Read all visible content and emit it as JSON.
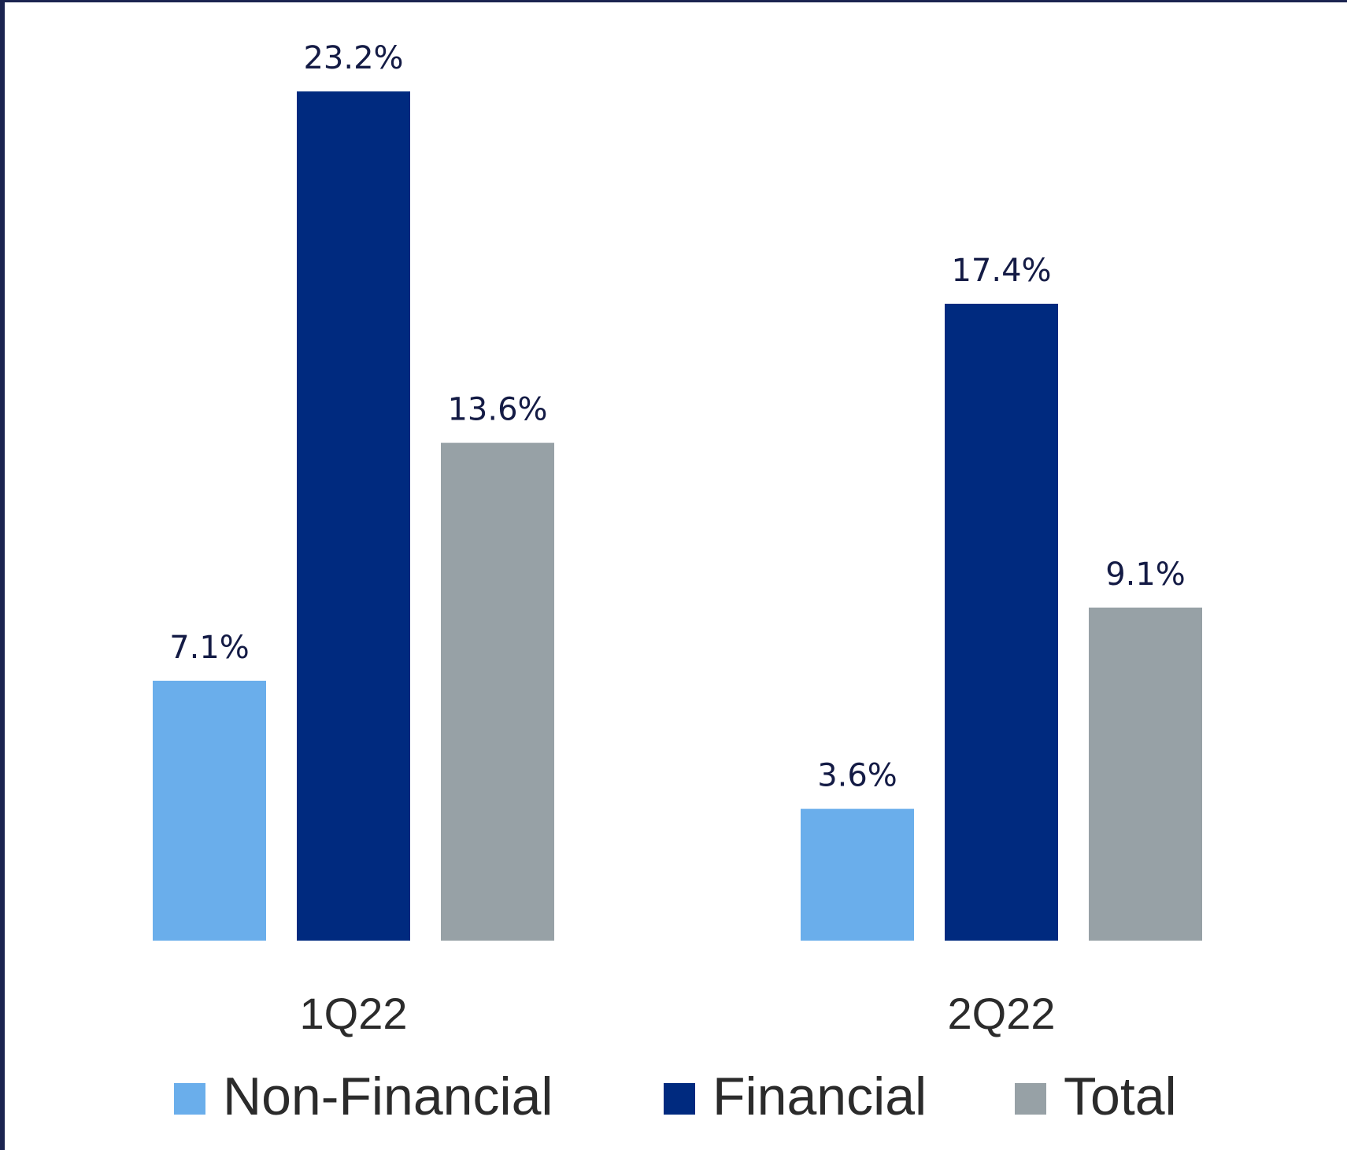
{
  "chart_data": {
    "type": "bar",
    "categories": [
      "1Q22",
      "2Q22"
    ],
    "series": [
      {
        "name": "Non-Financial",
        "color": "#6aaeeb",
        "values": [
          7.1,
          3.6
        ],
        "value_labels": [
          "7.1%",
          "3.6%"
        ]
      },
      {
        "name": "Financial",
        "color": "#002a7f",
        "values": [
          23.2,
          17.4
        ],
        "value_labels": [
          "23.2%",
          "17.4%"
        ]
      },
      {
        "name": "Total",
        "color": "#97a1a6",
        "values": [
          13.6,
          9.1
        ],
        "value_labels": [
          "13.6%",
          "9.1%"
        ]
      }
    ]
  }
}
